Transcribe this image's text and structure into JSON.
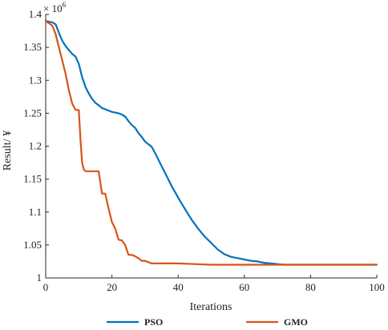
{
  "chart_data": {
    "type": "line",
    "xlabel": "Iterations",
    "ylabel": "Result/ ¥",
    "y_exponent_base": "× 10",
    "y_exponent_power": "6",
    "xlim": [
      0,
      100
    ],
    "ylim": [
      1.0,
      1.4
    ],
    "x_ticks": [
      0,
      20,
      40,
      60,
      80,
      100
    ],
    "x_tick_labels": [
      "0",
      "20",
      "40",
      "60",
      "80",
      "100"
    ],
    "y_ticks": [
      1.0,
      1.05,
      1.1,
      1.15,
      1.2,
      1.25,
      1.3,
      1.35,
      1.4
    ],
    "y_tick_labels": [
      "1",
      "1.05",
      "1.1",
      "1.15",
      "1.2",
      "1.25",
      "1.3",
      "1.35",
      "1.4"
    ],
    "grid": false,
    "legend_position": "bottom",
    "series": [
      {
        "name": "PSO",
        "color": "#0072BD",
        "x": [
          0,
          2,
          3,
          4,
          5,
          6,
          7,
          8,
          9,
          10,
          11,
          12,
          13,
          14,
          15,
          16,
          17,
          18,
          19,
          20,
          22,
          23,
          24,
          25,
          26,
          27,
          28,
          29,
          30,
          31,
          32,
          33,
          34,
          35,
          36,
          37,
          38,
          39,
          40,
          42,
          44,
          46,
          48,
          50,
          52,
          54,
          56,
          58,
          60,
          62,
          64,
          66,
          68,
          70,
          72,
          74,
          76,
          80,
          90,
          100
        ],
        "y": [
          1.39,
          1.388,
          1.385,
          1.372,
          1.36,
          1.352,
          1.346,
          1.34,
          1.336,
          1.325,
          1.305,
          1.29,
          1.28,
          1.272,
          1.266,
          1.262,
          1.258,
          1.256,
          1.254,
          1.252,
          1.25,
          1.248,
          1.245,
          1.238,
          1.232,
          1.228,
          1.22,
          1.214,
          1.207,
          1.203,
          1.199,
          1.19,
          1.18,
          1.17,
          1.16,
          1.15,
          1.14,
          1.131,
          1.122,
          1.105,
          1.089,
          1.075,
          1.063,
          1.053,
          1.043,
          1.036,
          1.032,
          1.03,
          1.028,
          1.026,
          1.025,
          1.023,
          1.022,
          1.021,
          1.02,
          1.02,
          1.02,
          1.02,
          1.02,
          1.02
        ]
      },
      {
        "name": "GMO",
        "color": "#D95319",
        "x": [
          0,
          2,
          3,
          4,
          5,
          6,
          7,
          8,
          9,
          10,
          10.5,
          11,
          11.5,
          12,
          13,
          14,
          15,
          16,
          17,
          18,
          19,
          20,
          21,
          22,
          23,
          24,
          25,
          26,
          27,
          28,
          29,
          30,
          31,
          32,
          33,
          35,
          40,
          45,
          50,
          60,
          70,
          80,
          90,
          100
        ],
        "y": [
          1.39,
          1.383,
          1.37,
          1.35,
          1.33,
          1.31,
          1.285,
          1.265,
          1.255,
          1.255,
          1.21,
          1.175,
          1.165,
          1.162,
          1.162,
          1.162,
          1.162,
          1.162,
          1.128,
          1.128,
          1.105,
          1.085,
          1.075,
          1.058,
          1.057,
          1.05,
          1.035,
          1.035,
          1.033,
          1.03,
          1.026,
          1.026,
          1.024,
          1.022,
          1.022,
          1.022,
          1.022,
          1.021,
          1.02,
          1.02,
          1.02,
          1.02,
          1.02,
          1.02
        ]
      }
    ]
  }
}
